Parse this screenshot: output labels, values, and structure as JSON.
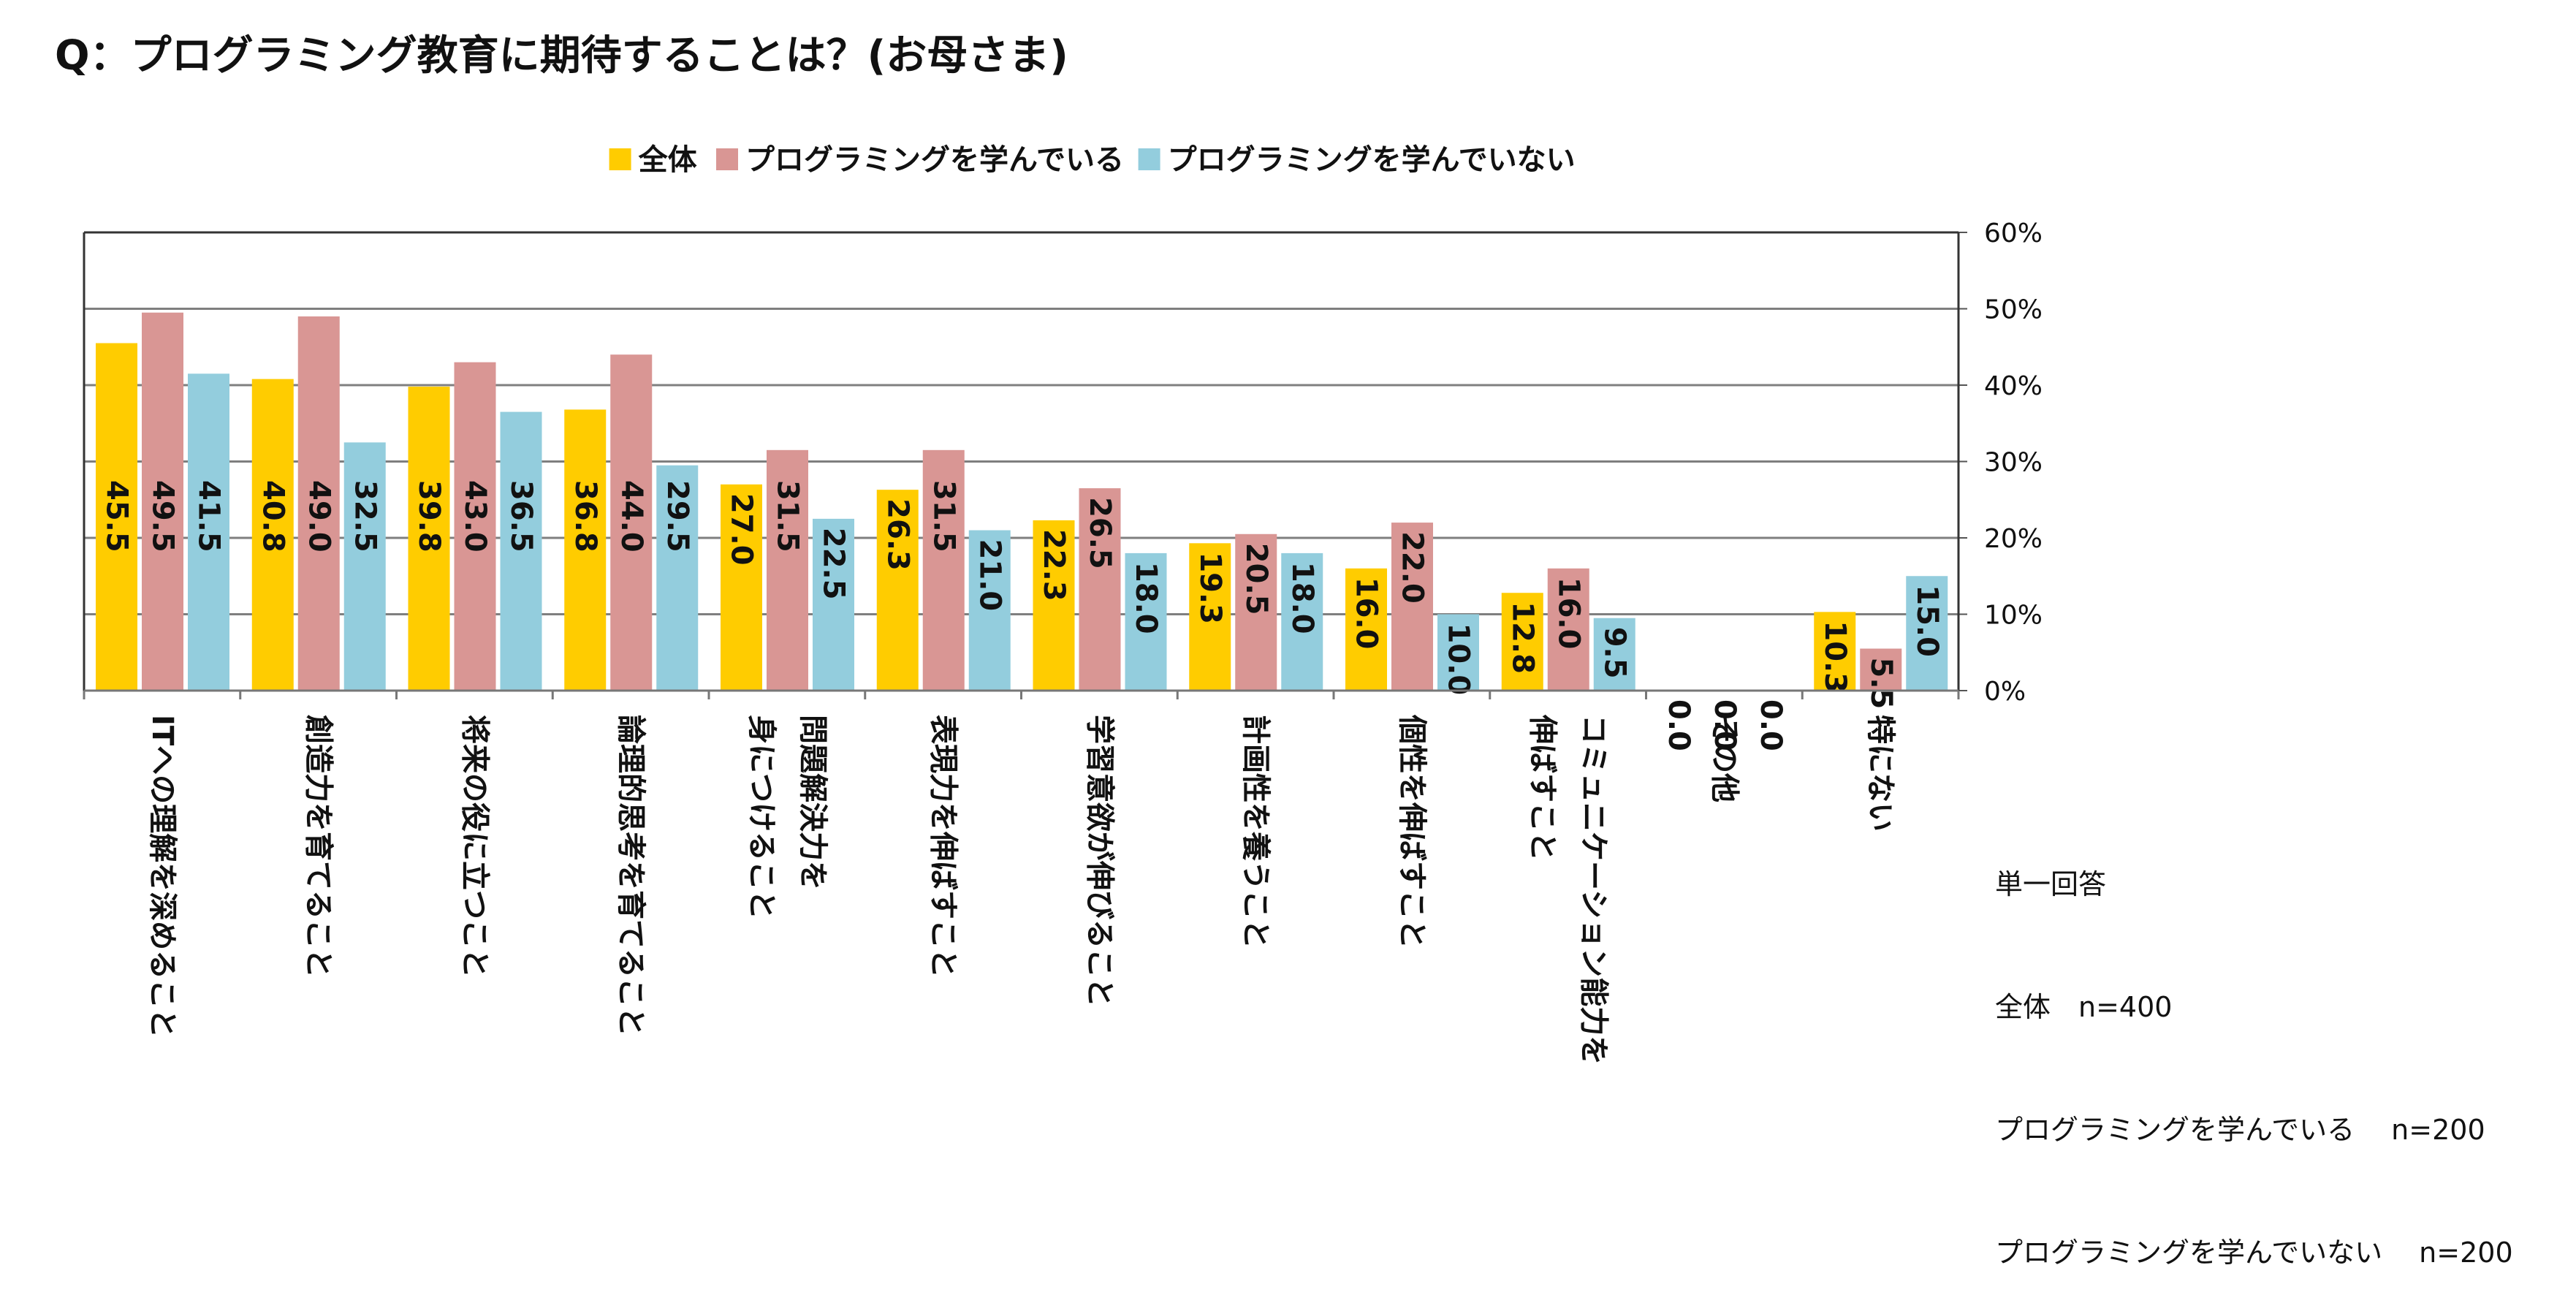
{
  "chart_data": {
    "type": "bar",
    "title": "Q：プログラミング教育に期待することは？(お母さま)",
    "ylim": [
      0,
      60
    ],
    "yticks": [
      "0%",
      "10%",
      "20%",
      "30%",
      "40%",
      "50%",
      "60%"
    ],
    "yaxis_position": "right",
    "grid": true,
    "legend_position": "top",
    "categories": [
      [
        "ITへの理解を深めること"
      ],
      [
        "創造力を育てること"
      ],
      [
        "将来の役に立つこと"
      ],
      [
        "論理的思考を育てること"
      ],
      [
        "問題解決力を",
        "身につけること"
      ],
      [
        "表現力を伸ばすこと"
      ],
      [
        "学習意欲が伸びること"
      ],
      [
        "計画性を養うこと"
      ],
      [
        "個性を伸ばすこと"
      ],
      [
        "コミュニケーション能力を",
        "伸ばすこと"
      ],
      [
        "その他"
      ],
      [
        "特にない"
      ]
    ],
    "series": [
      {
        "name": "全体",
        "color": "#FFCC00",
        "values": [
          45.5,
          40.8,
          39.8,
          36.8,
          27.0,
          26.3,
          22.3,
          19.3,
          16.0,
          12.8,
          0.0,
          10.3
        ],
        "labels": [
          "45.5",
          "40.8",
          "39.8",
          "36.8",
          "27.0",
          "26.3",
          "22.3",
          "19.3",
          "16.0",
          "12.8",
          "0.0",
          "10.3"
        ]
      },
      {
        "name": "プログラミングを学んでいる",
        "color": "#D99694",
        "values": [
          49.5,
          49.0,
          43.0,
          44.0,
          31.5,
          31.5,
          26.5,
          20.5,
          22.0,
          16.0,
          0.0,
          5.5
        ],
        "labels": [
          "49.5",
          "49.0",
          "43.0",
          "44.0",
          "31.5",
          "31.5",
          "26.5",
          "20.5",
          "22.0",
          "16.0",
          "0.0",
          "5.5"
        ]
      },
      {
        "name": "プログラミングを学んでいない",
        "color": "#93CDDD",
        "values": [
          41.5,
          32.5,
          36.5,
          29.5,
          22.5,
          21.0,
          18.0,
          18.0,
          10.0,
          9.5,
          0.0,
          15.0
        ],
        "labels": [
          "41.5",
          "32.5",
          "36.5",
          "29.5",
          "22.5",
          "21.0",
          "18.0",
          "18.0",
          "10.0",
          "9.5",
          "0.0",
          "15.0"
        ]
      }
    ]
  },
  "notes": [
    "単一回答",
    "全体　n=400",
    "プログラミングを学んでいる　 n=200",
    "プログラミングを学んでいない　 n=200"
  ]
}
